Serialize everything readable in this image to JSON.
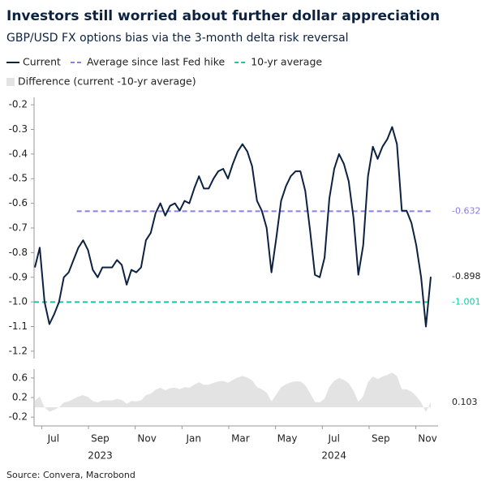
{
  "chart_data": {
    "type": "line",
    "title": "Investors still worried about further dollar appreciation",
    "subtitle": "GBP/USD FX options bias via the 3-month delta risk reversal",
    "source": "Source: Convera, Macrobond",
    "xlim": [
      "2023-06",
      "2024-11"
    ],
    "xticks": [
      {
        "value": "2023-07",
        "label": "Jul"
      },
      {
        "value": "2023-09",
        "label": "Sep"
      },
      {
        "value": "2023-11",
        "label": "Nov"
      },
      {
        "value": "2024-01",
        "label": "Jan"
      },
      {
        "value": "2024-03",
        "label": "Mar"
      },
      {
        "value": "2024-05",
        "label": "May"
      },
      {
        "value": "2024-07",
        "label": "Jul"
      },
      {
        "value": "2024-09",
        "label": "Sep"
      },
      {
        "value": "2024-11",
        "label": "Nov"
      }
    ],
    "year_labels": [
      {
        "value": "2023-09",
        "label": "2023"
      },
      {
        "value": "2024-07",
        "label": "2024"
      }
    ],
    "ylim": [
      -1.23,
      -0.17
    ],
    "yticks": [
      -0.2,
      -0.3,
      -0.4,
      -0.5,
      -0.6,
      -0.7,
      -0.8,
      -0.9,
      {
        "value": -1,
        "label": "-1.0"
      },
      -1.1,
      -1.2
    ],
    "series": [
      {
        "name": "Current",
        "color": "#0d2240",
        "values": [
          -0.86,
          -0.78,
          -1.0,
          -1.09,
          -1.05,
          -1.0,
          -0.9,
          -0.88,
          -0.83,
          -0.78,
          -0.75,
          -0.79,
          -0.87,
          -0.9,
          -0.86,
          -0.86,
          -0.86,
          -0.83,
          -0.85,
          -0.93,
          -0.87,
          -0.88,
          -0.86,
          -0.75,
          -0.72,
          -0.64,
          -0.6,
          -0.65,
          -0.61,
          -0.6,
          -0.63,
          -0.59,
          -0.6,
          -0.54,
          -0.49,
          -0.54,
          -0.54,
          -0.5,
          -0.47,
          -0.46,
          -0.5,
          -0.44,
          -0.39,
          -0.36,
          -0.39,
          -0.45,
          -0.59,
          -0.63,
          -0.7,
          -0.88,
          -0.74,
          -0.59,
          -0.53,
          -0.49,
          -0.47,
          -0.47,
          -0.55,
          -0.71,
          -0.89,
          -0.9,
          -0.82,
          -0.58,
          -0.46,
          -0.4,
          -0.44,
          -0.51,
          -0.66,
          -0.89,
          -0.77,
          -0.49,
          -0.37,
          -0.42,
          -0.37,
          -0.34,
          -0.29,
          -0.36,
          -0.63,
          -0.63,
          -0.68,
          -0.77,
          -0.9,
          -1.1,
          -0.898
        ]
      }
    ],
    "reference_lines": [
      {
        "name": "Average since last Fed hike",
        "color": "#8b7ee8",
        "value": -0.632,
        "start": "2023-08"
      },
      {
        "name": "10-yr average",
        "color": "#19c2a8",
        "value": -1.001,
        "start": "2023-06"
      }
    ],
    "difference": {
      "name": "Difference (current -10-yr average)",
      "color": "#e3e3e3",
      "ylim": [
        -0.33,
        0.78
      ],
      "yticks": [
        0.6,
        0.2,
        -0.2
      ],
      "values": [
        0.14,
        0.22,
        0.0,
        -0.09,
        -0.05,
        0.0,
        0.1,
        0.12,
        0.17,
        0.22,
        0.25,
        0.21,
        0.13,
        0.1,
        0.14,
        0.14,
        0.14,
        0.17,
        0.15,
        0.07,
        0.13,
        0.12,
        0.14,
        0.25,
        0.28,
        0.36,
        0.4,
        0.35,
        0.39,
        0.4,
        0.37,
        0.41,
        0.4,
        0.46,
        0.51,
        0.46,
        0.46,
        0.5,
        0.53,
        0.54,
        0.5,
        0.56,
        0.61,
        0.64,
        0.61,
        0.55,
        0.41,
        0.37,
        0.3,
        0.12,
        0.26,
        0.41,
        0.47,
        0.51,
        0.53,
        0.53,
        0.45,
        0.29,
        0.11,
        0.1,
        0.18,
        0.42,
        0.54,
        0.6,
        0.56,
        0.49,
        0.34,
        0.11,
        0.23,
        0.51,
        0.63,
        0.58,
        0.63,
        0.66,
        0.71,
        0.64,
        0.37,
        0.37,
        0.32,
        0.23,
        0.1,
        -0.1,
        0.103
      ]
    }
  }
}
